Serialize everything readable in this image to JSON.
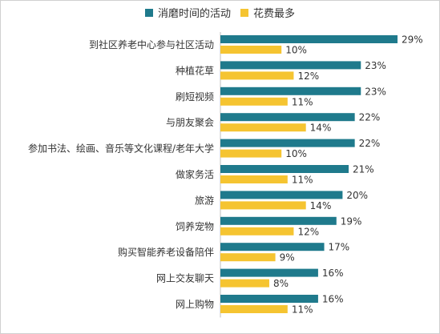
{
  "chart_data": {
    "type": "bar",
    "orientation": "horizontal",
    "title": "",
    "xlabel": "",
    "ylabel": "",
    "legend_position": "top",
    "grid": false,
    "xlim": [
      0,
      30
    ],
    "value_suffix": "%",
    "categories": [
      "到社区养老中心参与社区活动",
      "种植花草",
      "刷短视频",
      "与朋友聚会",
      "参加书法、绘画、音乐等文化课程/老年大学",
      "做家务活",
      "旅游",
      "饲养宠物",
      "购买智能养老设备陪伴",
      "网上交友聊天",
      "网上购物"
    ],
    "series": [
      {
        "name": "消磨时间的活动",
        "color": "#1f7a8c",
        "values": [
          29,
          23,
          23,
          22,
          22,
          21,
          20,
          19,
          17,
          16,
          16
        ]
      },
      {
        "name": "花费最多",
        "color": "#f5c431",
        "values": [
          10,
          12,
          11,
          14,
          10,
          11,
          14,
          12,
          9,
          8,
          11
        ]
      }
    ]
  }
}
